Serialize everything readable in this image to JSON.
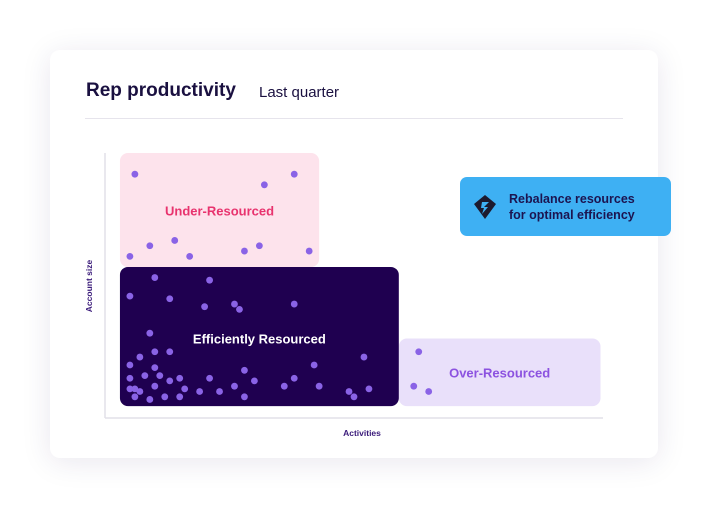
{
  "header": {
    "title": "Rep productivity",
    "subtitle": "Last quarter"
  },
  "callout": {
    "icon": "lightning-diamond-icon",
    "line1": "Rebalance resources",
    "line2": "for optimal efficiency",
    "color": "#3eb0f3"
  },
  "chart_data": {
    "type": "scatter",
    "xlabel": "Activities",
    "ylabel": "Account size",
    "xlim": [
      0,
      100
    ],
    "ylim": [
      0,
      100
    ],
    "grid": false,
    "regions": [
      {
        "label": "Under-Resourced",
        "x": [
          3,
          43
        ],
        "y": [
          57,
          100
        ],
        "fill": "#fde3ec",
        "label_color": "#e8336e"
      },
      {
        "label": "Efficiently Resourced",
        "x": [
          3,
          59
        ],
        "y": [
          4.5,
          57
        ],
        "fill": "#1f0050",
        "label_color": "#ffffff"
      },
      {
        "label": "Over-Resourced",
        "x": [
          59,
          99.5
        ],
        "y": [
          4.5,
          30
        ],
        "fill": "#e9e0fa",
        "label_color": "#8c52e0"
      }
    ],
    "point_color": "#8a63e6",
    "points": [
      [
        6,
        92
      ],
      [
        32,
        88
      ],
      [
        38,
        92
      ],
      [
        9,
        65
      ],
      [
        14,
        67
      ],
      [
        5,
        61
      ],
      [
        17,
        61
      ],
      [
        28,
        63
      ],
      [
        31,
        65
      ],
      [
        41,
        63
      ],
      [
        10,
        53
      ],
      [
        21,
        52
      ],
      [
        5,
        46
      ],
      [
        13,
        45
      ],
      [
        20,
        42
      ],
      [
        26,
        43
      ],
      [
        27,
        41
      ],
      [
        38,
        43
      ],
      [
        9,
        32
      ],
      [
        10,
        25
      ],
      [
        13,
        25
      ],
      [
        7,
        23
      ],
      [
        5,
        20
      ],
      [
        10,
        19
      ],
      [
        5,
        15
      ],
      [
        8,
        16
      ],
      [
        11,
        16
      ],
      [
        13,
        14
      ],
      [
        15,
        15
      ],
      [
        21,
        15
      ],
      [
        28,
        18
      ],
      [
        30,
        14
      ],
      [
        42,
        20
      ],
      [
        38,
        15
      ],
      [
        36,
        12
      ],
      [
        26,
        12
      ],
      [
        23,
        10
      ],
      [
        19,
        10
      ],
      [
        16,
        11
      ],
      [
        10,
        12
      ],
      [
        5,
        11
      ],
      [
        6,
        11
      ],
      [
        7,
        10
      ],
      [
        6,
        8
      ],
      [
        9,
        7
      ],
      [
        12,
        8
      ],
      [
        15,
        8
      ],
      [
        28,
        8
      ],
      [
        43,
        12
      ],
      [
        49,
        10
      ],
      [
        50,
        8
      ],
      [
        52,
        23
      ],
      [
        53,
        11
      ],
      [
        63,
        25
      ],
      [
        62,
        12
      ],
      [
        65,
        10
      ]
    ]
  }
}
